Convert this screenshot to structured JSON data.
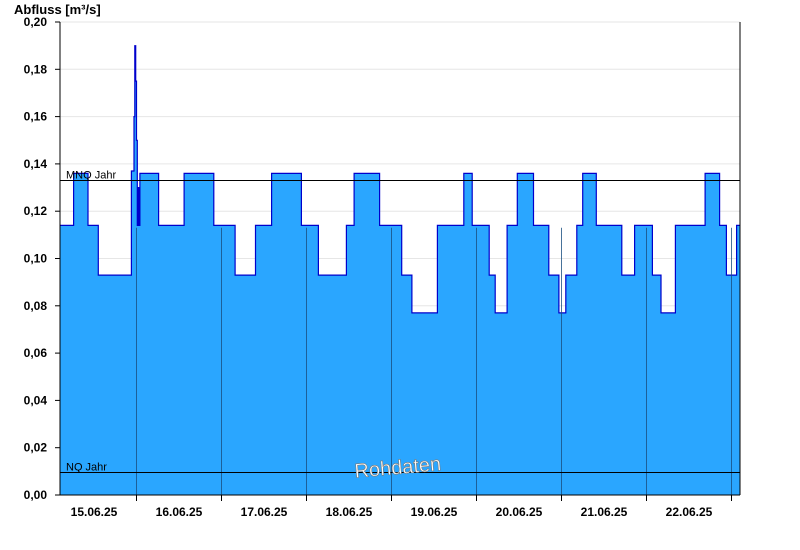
{
  "chart_data": {
    "type": "area",
    "title": "",
    "ylabel": "Abfluss [m³/s]",
    "xlabel": "",
    "ylim": [
      0,
      0.2
    ],
    "xlim_days": [
      14.6,
      22.6
    ],
    "grid": "horizontal light",
    "yticks": [
      "0,00",
      "0,02",
      "0,04",
      "0,06",
      "0,08",
      "0,10",
      "0,12",
      "0,14",
      "0,16",
      "0,18",
      "0,20"
    ],
    "ytick_values": [
      0,
      0.02,
      0.04,
      0.06,
      0.08,
      0.1,
      0.12,
      0.14,
      0.16,
      0.18,
      0.2
    ],
    "xticks": [
      "15.06.25",
      "16.06.25",
      "17.06.25",
      "18.06.25",
      "19.06.25",
      "20.06.25",
      "21.06.25",
      "22.06.25"
    ],
    "xtick_positions_days": [
      15.0,
      16.0,
      17.0,
      18.0,
      19.0,
      20.0,
      21.0,
      22.0
    ],
    "day_separators_days": [
      15.5,
      16.5,
      17.5,
      18.5,
      19.5,
      20.5,
      21.5,
      22.5
    ],
    "reference_lines": [
      {
        "label": "MNQ Jahr",
        "value": 0.133
      },
      {
        "label": "NQ Jahr",
        "value": 0.0095
      }
    ],
    "annotation": "Rohdaten",
    "series": [
      {
        "type": "step",
        "x_days": [
          14.6,
          14.76,
          14.93,
          15.05,
          15.44,
          15.47,
          15.48,
          15.49,
          15.5,
          15.51,
          15.52,
          15.53,
          15.54,
          15.56,
          15.59,
          15.76,
          16.06,
          16.41,
          16.66,
          16.9,
          17.09,
          17.16,
          17.44,
          17.64,
          17.97,
          18.06,
          18.36,
          18.62,
          18.74,
          19.04,
          19.18,
          19.35,
          19.45,
          19.5,
          19.65,
          19.72,
          19.86,
          19.98,
          20.17,
          20.35,
          20.47,
          20.55,
          20.68,
          20.75,
          20.91,
          21.21,
          21.36,
          21.53,
          21.57,
          21.67,
          21.84,
          22.19,
          22.36,
          22.44,
          22.56,
          22.6
        ],
        "y": [
          0.114,
          0.136,
          0.114,
          0.093,
          0.137,
          0.16,
          0.19,
          0.175,
          0.15,
          0.114,
          0.13,
          0.114,
          0.136,
          0.136,
          0.136,
          0.114,
          0.136,
          0.114,
          0.093,
          0.114,
          0.136,
          0.136,
          0.114,
          0.093,
          0.114,
          0.136,
          0.114,
          0.093,
          0.077,
          0.114,
          0.114,
          0.136,
          0.114,
          0.114,
          0.093,
          0.077,
          0.114,
          0.136,
          0.114,
          0.093,
          0.077,
          0.093,
          0.114,
          0.136,
          0.114,
          0.093,
          0.114,
          0.114,
          0.093,
          0.077,
          0.114,
          0.136,
          0.114,
          0.093,
          0.114,
          0.114
        ],
        "fill_color": "#2aa6ff",
        "line_color": "#0000cc"
      }
    ]
  }
}
